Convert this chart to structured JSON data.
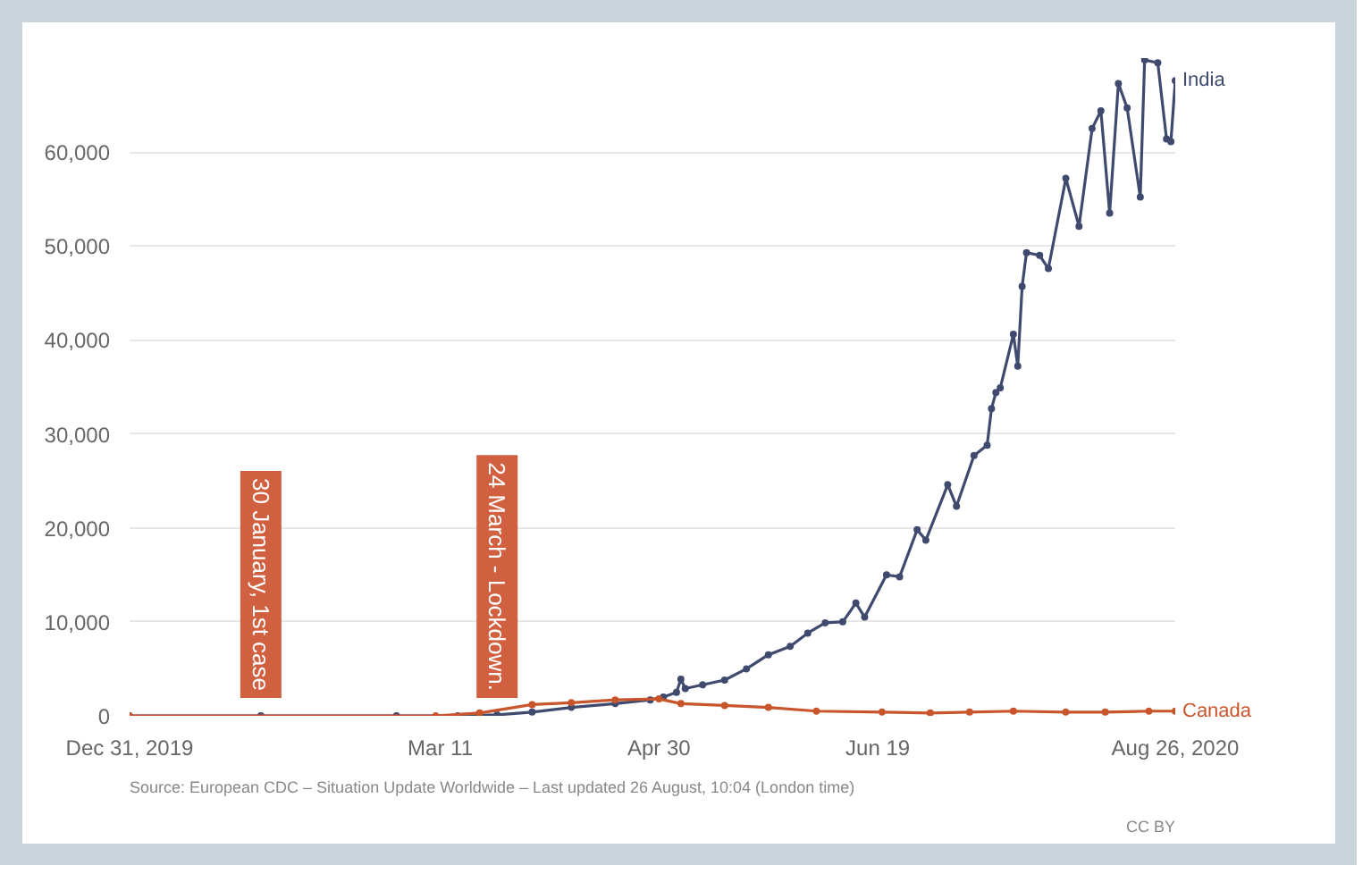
{
  "chart_data": {
    "type": "line",
    "xlim": [
      "2019-12-31",
      "2020-08-26"
    ],
    "ylim": [
      0,
      70000
    ],
    "xticks": [
      {
        "value": "2019-12-31",
        "label": "Dec 31, 2019"
      },
      {
        "value": "2020-03-11",
        "label": "Mar 11"
      },
      {
        "value": "2020-04-30",
        "label": "Apr 30"
      },
      {
        "value": "2020-06-19",
        "label": "Jun 19"
      },
      {
        "value": "2020-08-26",
        "label": "Aug 26, 2020"
      }
    ],
    "yticks": [
      0,
      {
        "value": 10000,
        "label": "10,000"
      },
      {
        "value": 20000,
        "label": "20,000"
      },
      {
        "value": 30000,
        "label": "30,000"
      },
      {
        "value": 40000,
        "label": "40,000"
      },
      {
        "value": 50000,
        "label": "50,000"
      },
      {
        "value": 60000,
        "label": "60,000"
      }
    ],
    "grid": "y",
    "legend": false,
    "marker": "circle",
    "line_style": "solid",
    "series": [
      {
        "name": "India",
        "color": "#3f4a6e",
        "x": [
          "2019-12-31",
          "2020-01-30",
          "2020-03-01",
          "2020-03-15",
          "2020-03-24",
          "2020-04-01",
          "2020-04-10",
          "2020-04-20",
          "2020-04-28",
          "2020-05-01",
          "2020-05-04",
          "2020-05-05",
          "2020-05-06",
          "2020-05-10",
          "2020-05-15",
          "2020-05-20",
          "2020-05-25",
          "2020-05-30",
          "2020-06-03",
          "2020-06-07",
          "2020-06-11",
          "2020-06-14",
          "2020-06-16",
          "2020-06-21",
          "2020-06-24",
          "2020-06-28",
          "2020-06-30",
          "2020-07-05",
          "2020-07-07",
          "2020-07-11",
          "2020-07-14",
          "2020-07-15",
          "2020-07-16",
          "2020-07-17",
          "2020-07-20",
          "2020-07-21",
          "2020-07-22",
          "2020-07-23",
          "2020-07-26",
          "2020-07-28",
          "2020-08-01",
          "2020-08-04",
          "2020-08-07",
          "2020-08-09",
          "2020-08-11",
          "2020-08-13",
          "2020-08-15",
          "2020-08-18",
          "2020-08-19",
          "2020-08-22",
          "2020-08-24",
          "2020-08-25",
          "2020-08-26"
        ],
        "values": [
          0,
          0,
          0,
          0,
          100,
          400,
          900,
          1300,
          1700,
          2000,
          2500,
          3900,
          2900,
          3300,
          3800,
          5000,
          6500,
          7400,
          8800,
          9900,
          10000,
          12000,
          10500,
          15000,
          14800,
          19800,
          18700,
          24600,
          22300,
          27700,
          28800,
          32700,
          34400,
          34900,
          40600,
          37200,
          45700,
          49300,
          49000,
          47600,
          57200,
          52100,
          62500,
          64400,
          53500,
          67300,
          64700,
          55200,
          69800,
          69500,
          61400,
          61100,
          67600
        ]
      },
      {
        "name": "Canada",
        "color": "#c8552b",
        "x": [
          "2019-12-31",
          "2020-03-10",
          "2020-03-20",
          "2020-04-01",
          "2020-04-10",
          "2020-04-20",
          "2020-04-30",
          "2020-05-05",
          "2020-05-15",
          "2020-05-25",
          "2020-06-05",
          "2020-06-20",
          "2020-07-01",
          "2020-07-10",
          "2020-07-20",
          "2020-08-01",
          "2020-08-10",
          "2020-08-20",
          "2020-08-26"
        ],
        "values": [
          0,
          0,
          300,
          1200,
          1400,
          1700,
          1800,
          1300,
          1100,
          900,
          500,
          400,
          300,
          400,
          500,
          400,
          400,
          500,
          500
        ]
      }
    ],
    "annotations": [
      {
        "text": "30 January, 1st case",
        "x": "2020-01-30",
        "y": 0
      },
      {
        "text": "24 March - Lockdown.",
        "x": "2020-03-24",
        "y": 0
      },
      "Source: European CDC – Situation Update Worldwide – Last updated 26 August, 10:04 (London time)",
      "CC BY"
    ]
  }
}
